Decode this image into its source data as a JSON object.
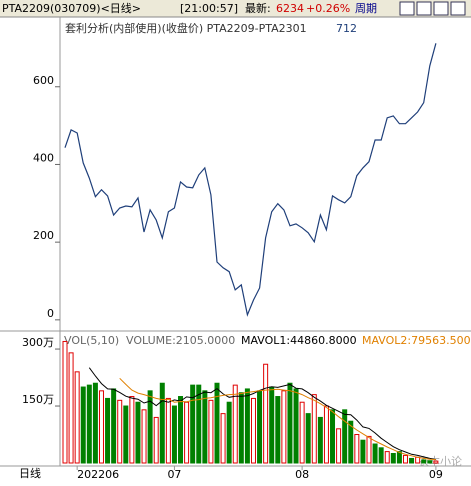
{
  "header": {
    "symbol": "PTA2209(030709)<日线>",
    "time": "[21:00:57]",
    "latest_label": "最新:",
    "latest": "6234",
    "change": "+0.26%",
    "period": "周期"
  },
  "watermark": "农本小论",
  "chart_data": [
    {
      "type": "line",
      "title": "套利分析(内部使用)(收盘价) PTA2209-PTA2301",
      "last_value_label": "712",
      "color": "#1f3f7a",
      "values": [
        443,
        489,
        481,
        404,
        365,
        317,
        335,
        319,
        270,
        288,
        293,
        291,
        314,
        226,
        283,
        257,
        211,
        278,
        288,
        355,
        342,
        340,
        373,
        391,
        322,
        149,
        134,
        124,
        77,
        90,
        13,
        51,
        82,
        211,
        278,
        299,
        283,
        242,
        247,
        237,
        224,
        201,
        270,
        232,
        319,
        309,
        301,
        317,
        371,
        391,
        407,
        463,
        463,
        520,
        525,
        505,
        505,
        520,
        535,
        559,
        654,
        712
      ],
      "ylim": [
        -21,
        777
      ],
      "yticks": [
        0,
        200,
        400,
        600
      ]
    },
    {
      "type": "bar",
      "title": "VOL(5,10)",
      "volume_label": "VOLUME:2105.0000",
      "mavol1_label": "MAVOL1:44860.8000",
      "mavol2_label": "MAVOL2:79563.500",
      "categories": [
        null,
        null,
        "202206",
        null,
        null,
        null,
        null,
        null,
        null,
        null,
        null,
        null,
        null,
        null,
        null,
        null,
        null,
        null,
        "07",
        null,
        null,
        null,
        null,
        null,
        null,
        null,
        null,
        null,
        null,
        null,
        null,
        null,
        null,
        null,
        null,
        null,
        null,
        null,
        null,
        "08",
        null,
        null,
        null,
        null,
        null,
        null,
        null,
        null,
        null,
        null,
        null,
        null,
        null,
        null,
        null,
        null,
        null,
        null,
        null,
        null,
        null,
        "09"
      ],
      "axis_label": "日线",
      "values": [
        320,
        290,
        240,
        200,
        205,
        210,
        190,
        170,
        195,
        165,
        150,
        175,
        160,
        140,
        190,
        120,
        210,
        170,
        150,
        175,
        160,
        205,
        205,
        190,
        165,
        210,
        130,
        160,
        205,
        185,
        195,
        170,
        190,
        260,
        200,
        175,
        190,
        210,
        195,
        160,
        130,
        180,
        120,
        150,
        140,
        90,
        140,
        110,
        75,
        60,
        70,
        50,
        40,
        30,
        25,
        30,
        20,
        12,
        15,
        8,
        6,
        5
      ],
      "colors": [
        "#e00000",
        "#e00000",
        "#e00000",
        "#008000",
        "#008000",
        "#008000",
        "#e00000",
        "#008000",
        "#008000",
        "#e00000",
        "#008000",
        "#e00000",
        "#008000",
        "#e00000",
        "#008000",
        "#e00000",
        "#008000",
        "#e00000",
        "#008000",
        "#008000",
        "#e00000",
        "#008000",
        "#008000",
        "#008000",
        "#e00000",
        "#008000",
        "#e00000",
        "#008000",
        "#e00000",
        "#008000",
        "#008000",
        "#e00000",
        "#008000",
        "#e00000",
        "#008000",
        "#008000",
        "#e00000",
        "#008000",
        "#008000",
        "#e00000",
        "#008000",
        "#e00000",
        "#008000",
        "#e00000",
        "#008000",
        "#e00000",
        "#008000",
        "#008000",
        "#e00000",
        "#008000",
        "#e00000",
        "#008000",
        "#008000",
        "#e00000",
        "#008000",
        "#008000",
        "#e00000",
        "#008000",
        "#e00000",
        "#008000",
        "#008000",
        "#e00000"
      ],
      "series": [
        {
          "name": "MAVOL1",
          "color": "#000000",
          "values": [
            null,
            null,
            null,
            null,
            251,
            229,
            209,
            195,
            194,
            186,
            176,
            171,
            168,
            158,
            163,
            151,
            164,
            160,
            166,
            163,
            174,
            172,
            180,
            187,
            185,
            196,
            182,
            173,
            176,
            176,
            177,
            183,
            191,
            197,
            201,
            199,
            203,
            207,
            197,
            195,
            185,
            173,
            163,
            152,
            144,
            136,
            128,
            127,
            113,
            95,
            91,
            79,
            65,
            54,
            43,
            35,
            29,
            23,
            20,
            16,
            12,
            9
          ]
        },
        {
          "name": "MAVOL2",
          "color": "#e08000",
          "values": [
            null,
            null,
            null,
            null,
            null,
            null,
            null,
            null,
            null,
            223,
            207,
            192,
            184,
            180,
            175,
            170,
            167,
            168,
            160,
            162,
            161,
            165,
            167,
            170,
            172,
            175,
            178,
            180,
            181,
            183,
            186,
            188,
            190,
            192,
            193,
            194,
            192,
            190,
            186,
            180,
            172,
            165,
            156,
            146,
            135,
            122,
            110,
            98,
            87,
            77,
            67,
            58,
            50,
            42,
            35,
            28,
            23,
            19,
            15,
            12,
            10,
            9
          ]
        }
      ],
      "ylim": [
        0,
        337
      ],
      "yticks": [
        {
          "value": 150,
          "label": "150万"
        },
        {
          "value": 300,
          "label": "300万"
        }
      ]
    }
  ]
}
